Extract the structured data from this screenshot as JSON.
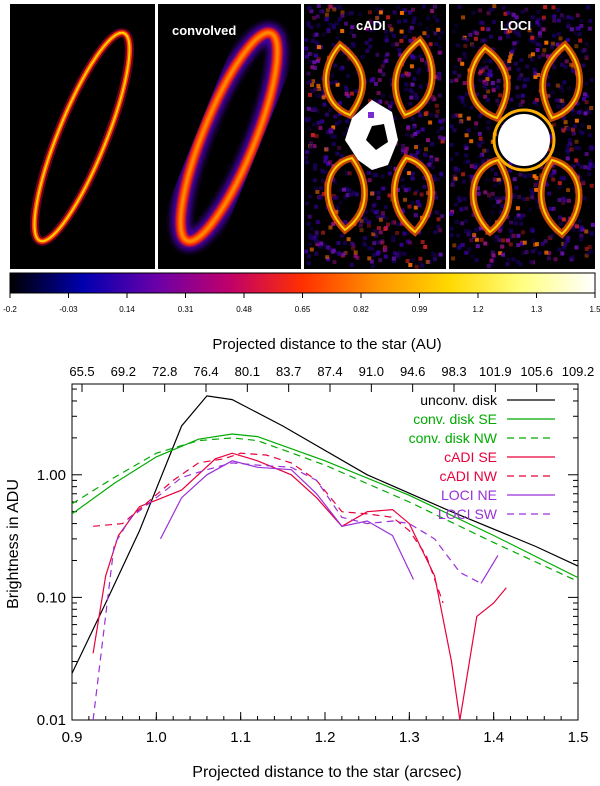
{
  "panels": [
    {
      "name": "model-disk-panel",
      "label": ""
    },
    {
      "name": "convolved-panel",
      "label": "convolved"
    },
    {
      "name": "cadi-panel",
      "label": "cADI"
    },
    {
      "name": "loci-panel",
      "label": "LOCI"
    }
  ],
  "colorbar": {
    "ticks": [
      "-0.2",
      "-0.03",
      "0.14",
      "0.31",
      "0.48",
      "0.65",
      "0.82",
      "0.99",
      "1.2",
      "1.3",
      "1.5"
    ],
    "colors": [
      "#000000",
      "#0000b0",
      "#6a00a8",
      "#c0006a",
      "#ff3000",
      "#ff9000",
      "#ffd800",
      "#ffff80",
      "#ffffff"
    ]
  },
  "chart_data": {
    "type": "line",
    "xlabel": "Projected distance to the star (arcsec)",
    "ylabel": "Brightness in ADU",
    "top_xlabel": "Projected distance to the star (AU)",
    "xlim": [
      0.9,
      1.5
    ],
    "ylim": [
      0.01,
      5.5
    ],
    "yscale": "log",
    "xticks": [
      "0.9",
      "1.0",
      "1.1",
      "1.2",
      "1.3",
      "1.4",
      "1.5"
    ],
    "yticks": [
      "0.01",
      "0.10",
      "1.00"
    ],
    "top_ticks": [
      "65.5",
      "69.2",
      "72.8",
      "76.4",
      "80.1",
      "83.7",
      "87.4",
      "91.0",
      "94.6",
      "98.3",
      "101.9",
      "105.6",
      "109.2"
    ],
    "legend_position": "top-right",
    "series": [
      {
        "name": "unconv. disk",
        "color": "#000000",
        "dash": "solid",
        "x": [
          0.9,
          0.94,
          0.98,
          1.03,
          1.06,
          1.09,
          1.15,
          1.25,
          1.35,
          1.45,
          1.5
        ],
        "y": [
          0.024,
          0.09,
          0.35,
          2.5,
          4.4,
          4.1,
          2.5,
          1.0,
          0.5,
          0.26,
          0.18
        ]
      },
      {
        "name": "conv. disk SE",
        "color": "#00aa00",
        "dash": "solid",
        "x": [
          0.9,
          0.95,
          1.0,
          1.05,
          1.09,
          1.12,
          1.2,
          1.3,
          1.4,
          1.5
        ],
        "y": [
          0.48,
          0.85,
          1.4,
          1.95,
          2.15,
          2.05,
          1.3,
          0.68,
          0.32,
          0.145
        ]
      },
      {
        "name": "conv. disk NW",
        "color": "#00aa00",
        "dash": "dashed",
        "x": [
          0.9,
          0.95,
          1.0,
          1.05,
          1.09,
          1.12,
          1.2,
          1.3,
          1.4,
          1.5
        ],
        "y": [
          0.58,
          0.95,
          1.5,
          1.9,
          2.0,
          1.9,
          1.2,
          0.6,
          0.28,
          0.135
        ]
      },
      {
        "name": "cADI SE",
        "color": "#e8003c",
        "dash": "solid",
        "x": [
          0.925,
          0.94,
          0.955,
          0.98,
          1.0,
          1.03,
          1.07,
          1.09,
          1.12,
          1.16,
          1.19,
          1.22,
          1.25,
          1.28,
          1.3,
          1.33,
          1.35,
          1.36,
          1.38,
          1.4,
          1.415
        ],
        "y": [
          0.035,
          0.15,
          0.32,
          0.55,
          0.62,
          0.75,
          1.35,
          1.5,
          1.3,
          1.0,
          0.65,
          0.38,
          0.5,
          0.52,
          0.4,
          0.15,
          0.03,
          0.01,
          0.07,
          0.09,
          0.12
        ]
      },
      {
        "name": "cADI NW",
        "color": "#e8003c",
        "dash": "dashed",
        "x": [
          0.925,
          0.96,
          0.99,
          1.02,
          1.05,
          1.08,
          1.1,
          1.13,
          1.16,
          1.19,
          1.22,
          1.25,
          1.28,
          1.3,
          1.32,
          1.34
        ],
        "y": [
          0.38,
          0.4,
          0.6,
          0.9,
          1.25,
          1.35,
          1.5,
          1.45,
          1.25,
          0.9,
          0.5,
          0.48,
          0.45,
          0.35,
          0.22,
          0.09
        ]
      },
      {
        "name": "LOCI NE",
        "color": "#9a30d8",
        "dash": "solid",
        "x": [
          1.005,
          1.03,
          1.06,
          1.09,
          1.12,
          1.16,
          1.19,
          1.22,
          1.25,
          1.28,
          1.305
        ],
        "y": [
          0.3,
          0.65,
          1.0,
          1.3,
          1.15,
          1.1,
          0.7,
          0.38,
          0.42,
          0.32,
          0.14
        ]
      },
      {
        "name": "LOCI SW",
        "color": "#9a30d8",
        "dash": "dashed",
        "x": [
          0.925,
          0.95,
          0.97,
          1.0,
          1.03,
          1.06,
          1.09,
          1.12,
          1.16,
          1.19,
          1.22,
          1.25,
          1.28,
          1.3,
          1.33,
          1.36,
          1.385
        ],
        "y": [
          0.01,
          0.27,
          0.45,
          0.65,
          0.95,
          1.1,
          1.25,
          1.2,
          1.15,
          0.9,
          0.45,
          0.4,
          0.42,
          0.4,
          0.3,
          0.16,
          0.13
        ]
      },
      {
        "name": "",
        "color": "#9a30d8",
        "dash": "solid",
        "x": [
          1.385,
          1.405
        ],
        "y": [
          0.13,
          0.22
        ]
      }
    ]
  }
}
